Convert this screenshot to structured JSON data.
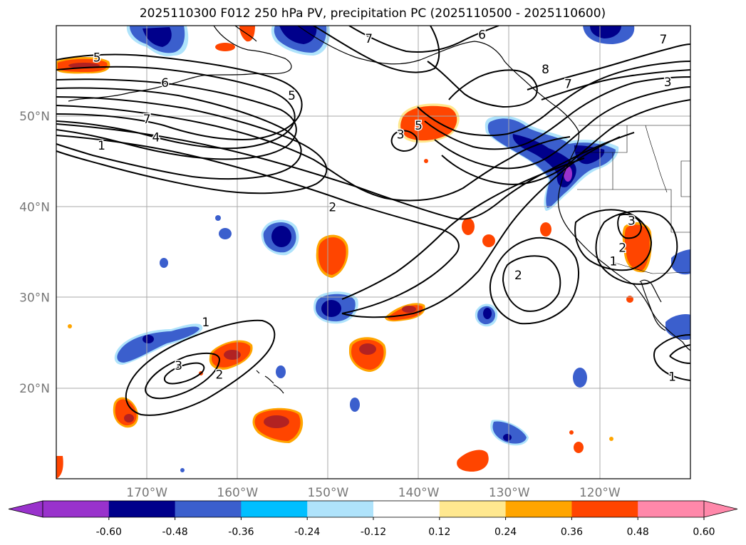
{
  "title": "2025110300 F012 250 hPa PV, precipitation PC (2025110500 - 2025110600)",
  "map": {
    "lon_range": [
      -180,
      -110
    ],
    "lat_range": [
      10,
      60
    ],
    "lon_ticks": [
      {
        "value": -170,
        "label": "170°W"
      },
      {
        "value": -160,
        "label": "160°W"
      },
      {
        "value": -150,
        "label": "150°W"
      },
      {
        "value": -140,
        "label": "140°W"
      },
      {
        "value": -130,
        "label": "130°W"
      },
      {
        "value": -120,
        "label": "120°W"
      }
    ],
    "lat_ticks": [
      {
        "value": 20,
        "label": "20°N"
      },
      {
        "value": 30,
        "label": "30°N"
      },
      {
        "value": 40,
        "label": "40°N"
      },
      {
        "value": 50,
        "label": "50°N"
      }
    ],
    "grid": true,
    "ocean_color": "#ffffff",
    "contour_color": "#000000",
    "coastline_color": "#000000",
    "gridline_color": "#aaaaaa"
  },
  "pv_contour_labels": [
    {
      "text": "5",
      "lon": -175.5,
      "lat": 56.5
    },
    {
      "text": "6",
      "lon": -168,
      "lat": 53.7
    },
    {
      "text": "7",
      "lon": -170,
      "lat": 49.7
    },
    {
      "text": "4",
      "lon": -169,
      "lat": 47.7
    },
    {
      "text": "1",
      "lon": -175,
      "lat": 46.8
    },
    {
      "text": "5",
      "lon": -154,
      "lat": 52.3
    },
    {
      "text": "2",
      "lon": -149.5,
      "lat": 40
    },
    {
      "text": "5",
      "lon": -140,
      "lat": 49
    },
    {
      "text": "3",
      "lon": -142,
      "lat": 48
    },
    {
      "text": "6",
      "lon": -133,
      "lat": 59
    },
    {
      "text": "7",
      "lon": -145.5,
      "lat": 58.6
    },
    {
      "text": "8",
      "lon": -126,
      "lat": 55.2
    },
    {
      "text": "7",
      "lon": -123.5,
      "lat": 53.6
    },
    {
      "text": "7",
      "lon": -113,
      "lat": 58.5
    },
    {
      "text": "3",
      "lon": -112.5,
      "lat": 53.8
    },
    {
      "text": "2",
      "lon": -129,
      "lat": 32.5
    },
    {
      "text": "2",
      "lon": -117.5,
      "lat": 35.5
    },
    {
      "text": "3",
      "lon": -116.5,
      "lat": 38.5
    },
    {
      "text": "1",
      "lon": -118.5,
      "lat": 34
    },
    {
      "text": "1",
      "lon": -163.5,
      "lat": 27.3
    },
    {
      "text": "3",
      "lon": -166.5,
      "lat": 22.5
    },
    {
      "text": "2",
      "lon": -162,
      "lat": 21.5
    },
    {
      "text": "1",
      "lon": -112,
      "lat": 21.3
    }
  ],
  "colorbar": {
    "levels": [
      "-0.60",
      "-0.48",
      "-0.36",
      "-0.24",
      "-0.12",
      "0.12",
      "0.24",
      "0.36",
      "0.48",
      "0.60"
    ],
    "colors": [
      "#9932cc",
      "#00008b",
      "#3b5fcd",
      "#00bfff",
      "#afe3fb",
      "#ffffff",
      "#ffe88f",
      "#ffa500",
      "#ff4500",
      "#b22222",
      "#ff88aa"
    ]
  }
}
